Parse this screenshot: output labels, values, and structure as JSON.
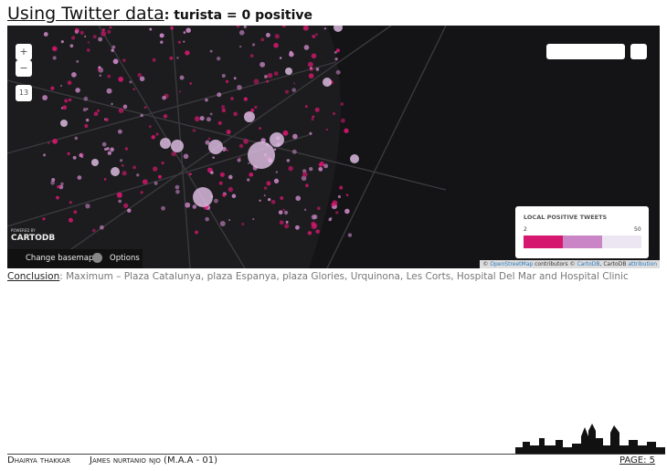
{
  "header": {
    "title": "Using Twitter data",
    "subtitle": ": turista = 0 positive"
  },
  "map": {
    "zoom_in": "+",
    "zoom_out": "−",
    "zoom_level": "13",
    "powered_by": "POWERED BY",
    "brand": "CARTODB",
    "change_basemap": "Change basemap",
    "options": "Options",
    "legend": {
      "title": "LOCAL POSITIVE TWEETS",
      "min": "2",
      "max": "50"
    },
    "attribution": {
      "prefix": "©",
      "osm": "OpenStreetMap",
      "contributors": "contributors ©",
      "cartodb": "CartoDB",
      "sep": ", CartoDB",
      "attribution": "attribution"
    }
  },
  "conclusion": {
    "label": "Conclusion",
    "text": ": Maximum – Plaza Catalunya, plaza Espanya, plaza Glories, Urquinona, Les Corts, Hospital Del Mar and Hospital Clinic"
  },
  "footer": {
    "author1": "Dhairya thakkar",
    "author2": "James nurtanio njo (M.A.A - 01)",
    "page": "PAGE: 5"
  }
}
